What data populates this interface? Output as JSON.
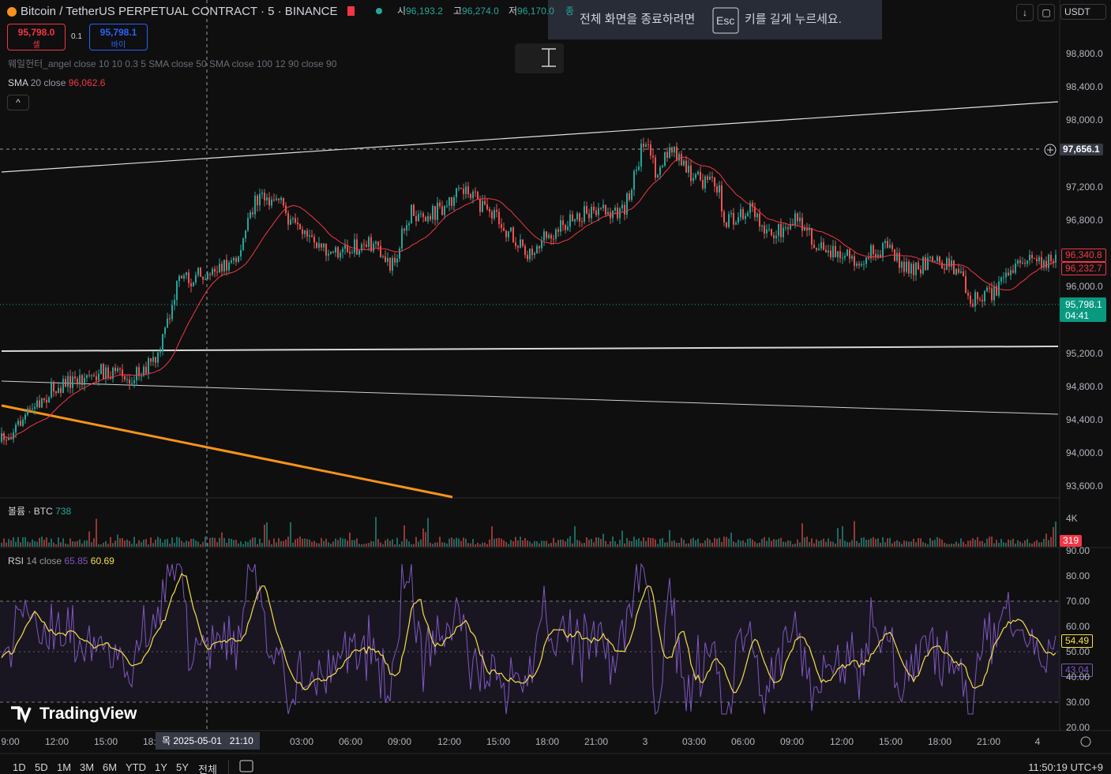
{
  "header": {
    "symbol": "Bitcoin / TetherUS PERPETUAL CONTRACT · 5 · BINANCE",
    "ohlc": [
      {
        "label": "시",
        "value": "96,193.2"
      },
      {
        "label": "고",
        "value": "96,274.0"
      },
      {
        "label": "저",
        "value": "96,170.0"
      }
    ],
    "close_label": "종"
  },
  "trade": {
    "sell_price": "95,798.0",
    "sell_label": "셀",
    "spread": "0.1",
    "buy_price": "95,798.1",
    "buy_label": "바이"
  },
  "currency": "USDT",
  "indicators": {
    "whale": "웨일헌터_angel close 10 10 0.3 5 SMA close 50 SMA close 100 12 90 close 90",
    "sma": {
      "name": "SMA",
      "params": "20 close",
      "value": "96,062.6"
    },
    "volume": {
      "name": "볼륨 · BTC",
      "value": "738"
    },
    "rsi": {
      "name": "RSI",
      "params": "14 close",
      "value": "65.85",
      "smoothed": "60.69"
    }
  },
  "fullscreen_notice": {
    "before": "전체 화면을 종료하려면",
    "key": "Esc",
    "after": "키를 길게 누르세요."
  },
  "price_axis": {
    "labels": [
      "98,800.0",
      "98,400.0",
      "98,000.0",
      "97,200.0",
      "96,800.0",
      "96,000.0",
      "95,200.0",
      "94,800.0",
      "94,400.0",
      "94,000.0",
      "93,600.0"
    ],
    "crosshair_price": "97,656.1",
    "tags": [
      "96,340.8",
      "96,232.7"
    ],
    "last_price": "95,798.1",
    "countdown": "04:41"
  },
  "volume_axis": {
    "labels": [
      "4K"
    ],
    "tag": "319"
  },
  "rsi_axis": {
    "labels": [
      "90.00",
      "80.00",
      "70.00",
      "60.00",
      "50.00",
      "40.00",
      "30.00",
      "20.00"
    ],
    "tags": [
      "54.49",
      "43.04"
    ]
  },
  "time_axis": {
    "labels": [
      "9:00",
      "12:00",
      "15:00",
      "18:",
      "03:00",
      "06:00",
      "09:00",
      "12:00",
      "15:00",
      "18:00",
      "21:00",
      "3",
      "03:00",
      "06:00",
      "09:00",
      "12:00",
      "15:00",
      "18:00",
      "21:00",
      "4"
    ],
    "crosshair_day": "목 2025-05-01",
    "crosshair_time": "21:10"
  },
  "logo": "TradingView",
  "ranges": [
    "1D",
    "5D",
    "1M",
    "3M",
    "6M",
    "YTD",
    "1Y",
    "5Y",
    "전체"
  ],
  "clock": "11:50:19 UTC+9"
}
